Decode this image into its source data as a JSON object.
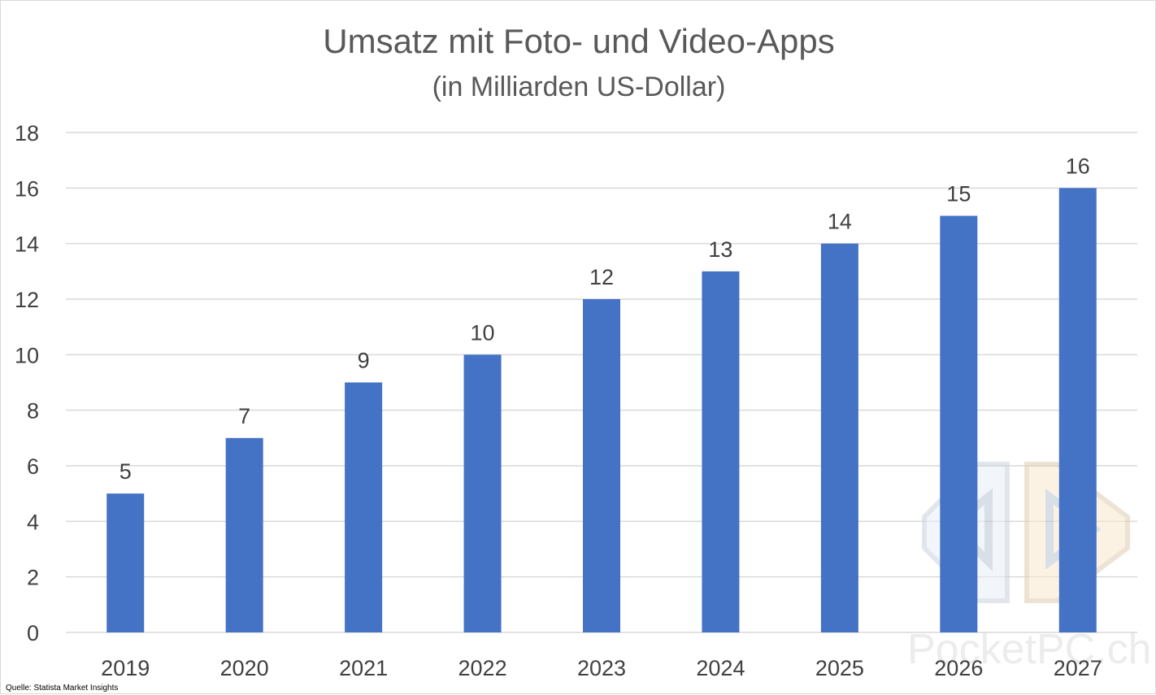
{
  "chart_data": {
    "type": "bar",
    "title": "Umsatz mit Foto- und Video-Apps",
    "subtitle": "(in Milliarden US-Dollar)",
    "categories": [
      "2019",
      "2020",
      "2021",
      "2022",
      "2023",
      "2024",
      "2025",
      "2026",
      "2027"
    ],
    "values": [
      5,
      7,
      9,
      10,
      12,
      13,
      14,
      15,
      16
    ],
    "data_labels": [
      "5",
      "7",
      "9",
      "10",
      "12",
      "13",
      "14",
      "15",
      "16"
    ],
    "ylim": [
      0,
      18
    ],
    "yticks": [
      0,
      2,
      4,
      6,
      8,
      10,
      12,
      14,
      16,
      18
    ],
    "ytick_labels": [
      "0",
      "2",
      "4",
      "6",
      "8",
      "10",
      "12",
      "14",
      "16",
      "18"
    ],
    "grid": true,
    "legend": "none",
    "bar_color": "#4472c4",
    "grid_color": "#d9d9d9"
  },
  "source_note": "Quelle: Statista Market Insights",
  "watermark": {
    "text": "PocketPC.ch",
    "icon": "pocketpc-logo-icon"
  }
}
